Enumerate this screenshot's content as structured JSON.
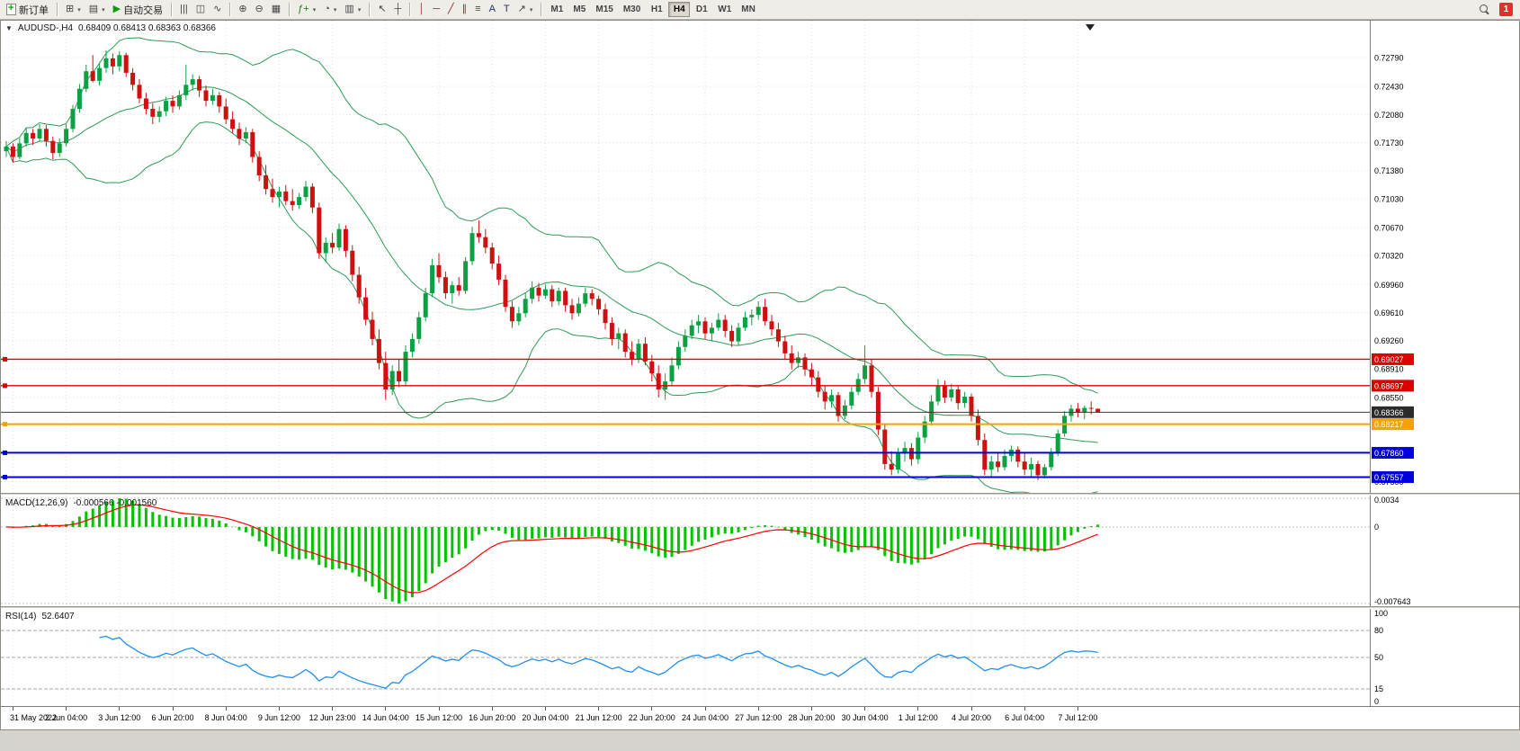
{
  "toolbar": {
    "new_order_label": "新订单",
    "autotrading_label": "自动交易",
    "groups": [
      [
        {
          "name": "new-order-button",
          "icon": "neworder",
          "labelKey": "new_order_label"
        }
      ],
      [
        {
          "name": "new-chart-button",
          "glyph": "⊞",
          "caret": true
        },
        {
          "name": "profiles-button",
          "glyph": "▤",
          "caret": true
        },
        {
          "name": "autotrading-button",
          "glyph": "▶",
          "gl": "#0a9a0a",
          "labelKey": "autotrading_label"
        }
      ],
      [
        {
          "name": "bar-chart-button",
          "glyph": "|||"
        },
        {
          "name": "candlestick-chart-button",
          "glyph": "◫"
        },
        {
          "name": "line-chart-button",
          "glyph": "∿"
        }
      ],
      [
        {
          "name": "zoom-in-button",
          "glyph": "⊕"
        },
        {
          "name": "zoom-out-button",
          "glyph": "⊖"
        },
        {
          "name": "tile-windows-button",
          "glyph": "▦"
        }
      ],
      [
        {
          "name": "indicators-button",
          "glyph": "ƒ+",
          "gl": "#188018",
          "caret": true
        },
        {
          "name": "periods-button",
          "glyph": "◔",
          "caret": true
        },
        {
          "name": "templates-button",
          "glyph": "▥",
          "caret": true
        }
      ],
      [
        {
          "name": "cursor-button",
          "glyph": "↖"
        },
        {
          "name": "crosshair-button",
          "glyph": "┼"
        }
      ],
      [
        {
          "name": "vertical-line-button",
          "glyph": "│",
          "gl": "#8a2b2b"
        },
        {
          "name": "horizontal-line-button",
          "glyph": "─",
          "gl": "#8a2b2b"
        },
        {
          "name": "trendline-button",
          "glyph": "╱",
          "gl": "#8a2b2b"
        },
        {
          "name": "channel-button",
          "glyph": "∥",
          "gl": "#8a2b2b"
        },
        {
          "name": "fibonacci-button",
          "glyph": "≡",
          "gl": "#8a2b2b"
        },
        {
          "name": "text-button",
          "glyph": "A",
          "gl": "#223366"
        },
        {
          "name": "text-label-button",
          "glyph": "T",
          "gl": "#223366"
        },
        {
          "name": "arrows-button",
          "glyph": "↗",
          "caret": true
        }
      ]
    ],
    "timeframes": [
      "M1",
      "M5",
      "M15",
      "M30",
      "H1",
      "H4",
      "D1",
      "W1",
      "MN"
    ],
    "active_timeframe": "H4",
    "notification_count": "1"
  },
  "chart": {
    "symbol_label": "AUDUSD-,H4",
    "ohlc": "0.68409 0.68413 0.68363 0.68366",
    "dropdown_glyph": "▼",
    "price_range": {
      "min": 0.6736,
      "max": 0.7325
    },
    "colors": {
      "up": "#0ba142",
      "down": "#d01010",
      "grid": "#dedede",
      "axis_text": "#000000"
    },
    "bollinger": {
      "period": 20,
      "deviation": 2,
      "color": "#2e9b57"
    },
    "axis_ticks": [
      "0.72790",
      "0.72430",
      "0.72080",
      "0.71730",
      "0.71380",
      "0.71030",
      "0.70670",
      "0.70320",
      "0.69960",
      "0.69610",
      "0.69260",
      "0.68910",
      "0.68550",
      "0.67500"
    ],
    "levels": [
      {
        "value": 0.69027,
        "label": "0.69027",
        "color": "#dd0000",
        "width": 1.4
      },
      {
        "value": 0.68697,
        "label": "0.68697",
        "color": "#dd0000",
        "width": 1.4
      },
      {
        "value": 0.68366,
        "label": "0.68366",
        "color": "#3a3a3a",
        "width": 1,
        "bid": true
      },
      {
        "value": 0.68217,
        "label": "0.68217",
        "color": "#f5a300",
        "width": 2
      },
      {
        "value": 0.6786,
        "label": "0.67860",
        "color": "#0000dd",
        "width": 2
      },
      {
        "value": 0.67557,
        "label": "0.67557",
        "color": "#0000dd",
        "width": 2
      }
    ],
    "time_ticks": [
      {
        "i": 1,
        "label": "31 May 2022"
      },
      {
        "i": 9,
        "label": "2 Jun 04:00"
      },
      {
        "i": 17,
        "label": "3 Jun 12:00"
      },
      {
        "i": 25,
        "label": "6 Jun 20:00"
      },
      {
        "i": 33,
        "label": "8 Jun 04:00"
      },
      {
        "i": 41,
        "label": "9 Jun 12:00"
      },
      {
        "i": 49,
        "label": "12 Jun 23:00"
      },
      {
        "i": 57,
        "label": "14 Jun 04:00"
      },
      {
        "i": 65,
        "label": "15 Jun 12:00"
      },
      {
        "i": 73,
        "label": "16 Jun 20:00"
      },
      {
        "i": 81,
        "label": "20 Jun 04:00"
      },
      {
        "i": 89,
        "label": "21 Jun 12:00"
      },
      {
        "i": 97,
        "label": "22 Jun 20:00"
      },
      {
        "i": 105,
        "label": "24 Jun 04:00"
      },
      {
        "i": 113,
        "label": "27 Jun 12:00"
      },
      {
        "i": 121,
        "label": "28 Jun 20:00"
      },
      {
        "i": 129,
        "label": "30 Jun 04:00"
      },
      {
        "i": 137,
        "label": "1 Jul 12:00"
      },
      {
        "i": 145,
        "label": "4 Jul 20:00"
      },
      {
        "i": 153,
        "label": "6 Jul 04:00"
      },
      {
        "i": 161,
        "label": "7 Jul 12:00"
      }
    ],
    "candles": [
      [
        0.7162,
        0.7175,
        0.7155,
        0.7168
      ],
      [
        0.7168,
        0.7172,
        0.7148,
        0.7155
      ],
      [
        0.7155,
        0.7178,
        0.7152,
        0.7172
      ],
      [
        0.7172,
        0.7192,
        0.7168,
        0.7185
      ],
      [
        0.7185,
        0.719,
        0.717,
        0.7178
      ],
      [
        0.7178,
        0.7196,
        0.7174,
        0.719
      ],
      [
        0.719,
        0.7195,
        0.7168,
        0.7175
      ],
      [
        0.7175,
        0.718,
        0.7152,
        0.716
      ],
      [
        0.716,
        0.7178,
        0.7155,
        0.7172
      ],
      [
        0.7172,
        0.7196,
        0.7168,
        0.719
      ],
      [
        0.719,
        0.722,
        0.7186,
        0.7215
      ],
      [
        0.7215,
        0.7246,
        0.721,
        0.724
      ],
      [
        0.724,
        0.727,
        0.7236,
        0.7262
      ],
      [
        0.7262,
        0.7282,
        0.7248,
        0.725
      ],
      [
        0.725,
        0.7272,
        0.7244,
        0.7266
      ],
      [
        0.7266,
        0.7288,
        0.726,
        0.7278
      ],
      [
        0.7278,
        0.7284,
        0.7258,
        0.7268
      ],
      [
        0.7268,
        0.7287,
        0.7262,
        0.7282
      ],
      [
        0.7282,
        0.7285,
        0.7255,
        0.726
      ],
      [
        0.726,
        0.7266,
        0.7238,
        0.7245
      ],
      [
        0.7245,
        0.7252,
        0.7222,
        0.7228
      ],
      [
        0.7228,
        0.7235,
        0.7208,
        0.7215
      ],
      [
        0.7215,
        0.7222,
        0.7196,
        0.7205
      ],
      [
        0.7205,
        0.7218,
        0.7198,
        0.7212
      ],
      [
        0.7212,
        0.723,
        0.7206,
        0.7225
      ],
      [
        0.7225,
        0.7232,
        0.721,
        0.7218
      ],
      [
        0.7218,
        0.7238,
        0.7214,
        0.7232
      ],
      [
        0.7232,
        0.727,
        0.7226,
        0.7245
      ],
      [
        0.7245,
        0.7258,
        0.7238,
        0.7252
      ],
      [
        0.7252,
        0.7256,
        0.723,
        0.7238
      ],
      [
        0.7238,
        0.7244,
        0.7218,
        0.7225
      ],
      [
        0.7225,
        0.724,
        0.722,
        0.7232
      ],
      [
        0.7232,
        0.7236,
        0.721,
        0.7218
      ],
      [
        0.7218,
        0.7228,
        0.7196,
        0.7202
      ],
      [
        0.7202,
        0.7212,
        0.7185,
        0.719
      ],
      [
        0.719,
        0.7198,
        0.717,
        0.7178
      ],
      [
        0.7178,
        0.7192,
        0.7172,
        0.7186
      ],
      [
        0.7186,
        0.719,
        0.7148,
        0.7155
      ],
      [
        0.7155,
        0.7162,
        0.7125,
        0.7132
      ],
      [
        0.7132,
        0.7145,
        0.7108,
        0.7115
      ],
      [
        0.7115,
        0.7128,
        0.7098,
        0.7105
      ],
      [
        0.7105,
        0.7118,
        0.7092,
        0.7112
      ],
      [
        0.7112,
        0.712,
        0.7095,
        0.71
      ],
      [
        0.71,
        0.7115,
        0.7088,
        0.7095
      ],
      [
        0.7095,
        0.711,
        0.709,
        0.7105
      ],
      [
        0.7105,
        0.7125,
        0.71,
        0.7118
      ],
      [
        0.7118,
        0.7122,
        0.7085,
        0.7092
      ],
      [
        0.7092,
        0.7098,
        0.7028,
        0.7035
      ],
      [
        0.7035,
        0.7055,
        0.7025,
        0.7048
      ],
      [
        0.7048,
        0.706,
        0.7035,
        0.7042
      ],
      [
        0.7042,
        0.7072,
        0.7038,
        0.7065
      ],
      [
        0.7065,
        0.707,
        0.703,
        0.7038
      ],
      [
        0.7038,
        0.7045,
        0.7,
        0.7008
      ],
      [
        0.7008,
        0.7018,
        0.6972,
        0.698
      ],
      [
        0.698,
        0.6992,
        0.6945,
        0.6952
      ],
      [
        0.6952,
        0.6962,
        0.692,
        0.6928
      ],
      [
        0.6928,
        0.694,
        0.689,
        0.6898
      ],
      [
        0.6898,
        0.6912,
        0.6852,
        0.6865
      ],
      [
        0.6865,
        0.6895,
        0.6858,
        0.6888
      ],
      [
        0.6888,
        0.6902,
        0.6868,
        0.6875
      ],
      [
        0.6875,
        0.692,
        0.687,
        0.6912
      ],
      [
        0.6912,
        0.6935,
        0.6905,
        0.6928
      ],
      [
        0.6928,
        0.6962,
        0.6922,
        0.6955
      ],
      [
        0.6955,
        0.6992,
        0.695,
        0.6985
      ],
      [
        0.6985,
        0.7028,
        0.698,
        0.702
      ],
      [
        0.702,
        0.7035,
        0.6998,
        0.7005
      ],
      [
        0.7005,
        0.7012,
        0.6978,
        0.6985
      ],
      [
        0.6985,
        0.7,
        0.6972,
        0.6995
      ],
      [
        0.6995,
        0.7005,
        0.6982,
        0.6988
      ],
      [
        0.6988,
        0.703,
        0.6984,
        0.7025
      ],
      [
        0.7025,
        0.7068,
        0.702,
        0.706
      ],
      [
        0.706,
        0.7076,
        0.7048,
        0.7055
      ],
      [
        0.7055,
        0.7065,
        0.7035,
        0.7042
      ],
      [
        0.7042,
        0.7048,
        0.7015,
        0.7022
      ],
      [
        0.7022,
        0.7032,
        0.6995,
        0.7002
      ],
      [
        0.7002,
        0.7008,
        0.6962,
        0.6968
      ],
      [
        0.6968,
        0.6975,
        0.6942,
        0.695
      ],
      [
        0.695,
        0.6968,
        0.6945,
        0.696
      ],
      [
        0.696,
        0.6985,
        0.6955,
        0.6978
      ],
      [
        0.6978,
        0.7,
        0.6972,
        0.6992
      ],
      [
        0.6992,
        0.6998,
        0.6975,
        0.6982
      ],
      [
        0.6982,
        0.6996,
        0.6978,
        0.699
      ],
      [
        0.699,
        0.6995,
        0.6968,
        0.6975
      ],
      [
        0.6975,
        0.6992,
        0.697,
        0.6988
      ],
      [
        0.6988,
        0.6992,
        0.6962,
        0.697
      ],
      [
        0.697,
        0.6978,
        0.6952,
        0.696
      ],
      [
        0.696,
        0.698,
        0.6956,
        0.6972
      ],
      [
        0.6972,
        0.6992,
        0.6968,
        0.6985
      ],
      [
        0.6985,
        0.699,
        0.697,
        0.6978
      ],
      [
        0.6978,
        0.6982,
        0.6958,
        0.6965
      ],
      [
        0.6965,
        0.6972,
        0.694,
        0.6948
      ],
      [
        0.6948,
        0.6955,
        0.692,
        0.6928
      ],
      [
        0.6928,
        0.6942,
        0.6915,
        0.6935
      ],
      [
        0.6935,
        0.694,
        0.6905,
        0.6912
      ],
      [
        0.6912,
        0.6925,
        0.6895,
        0.6902
      ],
      [
        0.6902,
        0.6928,
        0.6898,
        0.6922
      ],
      [
        0.6922,
        0.693,
        0.6895,
        0.69
      ],
      [
        0.69,
        0.6908,
        0.6875,
        0.6885
      ],
      [
        0.6885,
        0.6895,
        0.6855,
        0.6865
      ],
      [
        0.6865,
        0.6885,
        0.6852,
        0.6875
      ],
      [
        0.6875,
        0.6905,
        0.687,
        0.6895
      ],
      [
        0.6895,
        0.6925,
        0.689,
        0.6918
      ],
      [
        0.6918,
        0.694,
        0.6912,
        0.6932
      ],
      [
        0.6932,
        0.6952,
        0.6928,
        0.6945
      ],
      [
        0.6945,
        0.6958,
        0.6935,
        0.695
      ],
      [
        0.695,
        0.6955,
        0.6928,
        0.6935
      ],
      [
        0.6935,
        0.6948,
        0.6925,
        0.6942
      ],
      [
        0.6942,
        0.696,
        0.6938,
        0.6952
      ],
      [
        0.6952,
        0.6958,
        0.693,
        0.6938
      ],
      [
        0.6938,
        0.6945,
        0.6918,
        0.6925
      ],
      [
        0.6925,
        0.6948,
        0.692,
        0.6942
      ],
      [
        0.6942,
        0.6962,
        0.6938,
        0.6955
      ],
      [
        0.6955,
        0.6965,
        0.6945,
        0.6958
      ],
      [
        0.6958,
        0.6975,
        0.6952,
        0.6968
      ],
      [
        0.6968,
        0.6978,
        0.6945,
        0.695
      ],
      [
        0.695,
        0.6958,
        0.6932,
        0.694
      ],
      [
        0.694,
        0.6948,
        0.6918,
        0.6925
      ],
      [
        0.6925,
        0.6932,
        0.6902,
        0.691
      ],
      [
        0.691,
        0.692,
        0.689,
        0.6898
      ],
      [
        0.6898,
        0.6912,
        0.6892,
        0.6905
      ],
      [
        0.6905,
        0.691,
        0.6882,
        0.689
      ],
      [
        0.689,
        0.6898,
        0.687,
        0.688
      ],
      [
        0.688,
        0.6888,
        0.6855,
        0.6862
      ],
      [
        0.6862,
        0.687,
        0.684,
        0.685
      ],
      [
        0.685,
        0.6865,
        0.6842,
        0.6858
      ],
      [
        0.6858,
        0.6862,
        0.6825,
        0.6832
      ],
      [
        0.6832,
        0.6852,
        0.6828,
        0.6845
      ],
      [
        0.6845,
        0.6868,
        0.684,
        0.6862
      ],
      [
        0.6862,
        0.6885,
        0.6858,
        0.6878
      ],
      [
        0.6878,
        0.692,
        0.6872,
        0.6895
      ],
      [
        0.6895,
        0.6902,
        0.6855,
        0.6862
      ],
      [
        0.6862,
        0.6868,
        0.6808,
        0.6815
      ],
      [
        0.6815,
        0.6822,
        0.6765,
        0.6772
      ],
      [
        0.6772,
        0.6788,
        0.6758,
        0.6765
      ],
      [
        0.6765,
        0.6792,
        0.676,
        0.6785
      ],
      [
        0.6785,
        0.68,
        0.6775,
        0.6792
      ],
      [
        0.6792,
        0.6798,
        0.677,
        0.6778
      ],
      [
        0.6778,
        0.6812,
        0.6772,
        0.6805
      ],
      [
        0.6805,
        0.6832,
        0.6798,
        0.6825
      ],
      [
        0.6825,
        0.6858,
        0.682,
        0.685
      ],
      [
        0.685,
        0.6878,
        0.6845,
        0.687
      ],
      [
        0.687,
        0.6876,
        0.6848,
        0.6855
      ],
      [
        0.6855,
        0.6872,
        0.685,
        0.6865
      ],
      [
        0.6865,
        0.687,
        0.684,
        0.6848
      ],
      [
        0.6848,
        0.6862,
        0.6842,
        0.6856
      ],
      [
        0.6856,
        0.686,
        0.6825,
        0.6832
      ],
      [
        0.6832,
        0.684,
        0.6795,
        0.6802
      ],
      [
        0.6802,
        0.681,
        0.6758,
        0.6765
      ],
      [
        0.6765,
        0.6782,
        0.6755,
        0.6775
      ],
      [
        0.6775,
        0.6786,
        0.6762,
        0.6768
      ],
      [
        0.6768,
        0.679,
        0.6764,
        0.6782
      ],
      [
        0.6782,
        0.6795,
        0.6775,
        0.679
      ],
      [
        0.679,
        0.6794,
        0.6768,
        0.6775
      ],
      [
        0.6775,
        0.6785,
        0.6758,
        0.6765
      ],
      [
        0.6765,
        0.678,
        0.6756,
        0.6772
      ],
      [
        0.6772,
        0.6776,
        0.6752,
        0.6758
      ],
      [
        0.6758,
        0.6772,
        0.6754,
        0.6768
      ],
      [
        0.6768,
        0.6792,
        0.6764,
        0.6786
      ],
      [
        0.6786,
        0.6815,
        0.6782,
        0.681
      ],
      [
        0.681,
        0.6838,
        0.6806,
        0.6832
      ],
      [
        0.6832,
        0.6846,
        0.6825,
        0.6841
      ],
      [
        0.6841,
        0.6848,
        0.683,
        0.6836
      ],
      [
        0.6836,
        0.6845,
        0.6828,
        0.6842
      ],
      [
        0.6842,
        0.685,
        0.6834,
        0.6841
      ],
      [
        0.68409,
        0.68413,
        0.68363,
        0.68366
      ]
    ]
  },
  "macd": {
    "label": "MACD(12,26,9)",
    "values": "-0.000566 -0.001560",
    "fast": 12,
    "slow": 26,
    "signal": 9,
    "axis_max_label": "0.0034",
    "axis_zero_label": "0",
    "axis_min_label": "-0.007643",
    "histogram_color": "#00c400",
    "signal_color": "#ff0000"
  },
  "rsi": {
    "label": "RSI(14)",
    "value": "52.6407",
    "period": 14,
    "line_color": "#2090f0",
    "levels": [
      80,
      50,
      15
    ],
    "axis": [
      {
        "value": 100,
        "label": "100"
      },
      {
        "value": 80,
        "label": "80"
      },
      {
        "value": 50,
        "label": "50"
      },
      {
        "value": 15,
        "label": "15"
      },
      {
        "value": 0,
        "label": "0"
      }
    ]
  }
}
